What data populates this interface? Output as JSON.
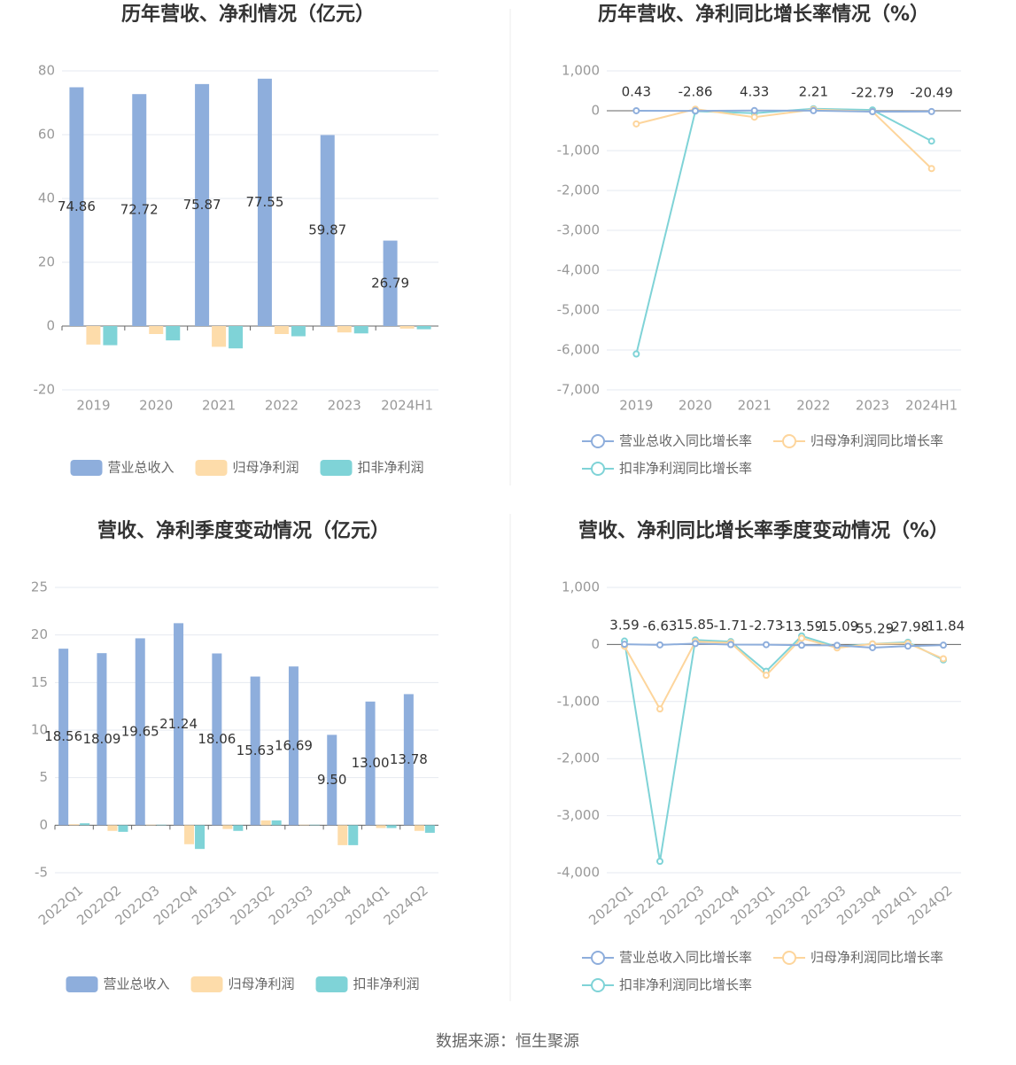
{
  "chart_data": [
    {
      "type": "bar",
      "title": "历年营收、净利情况（亿元）",
      "categories": [
        "2019",
        "2020",
        "2021",
        "2022",
        "2023",
        "2024H1"
      ],
      "series": [
        {
          "name": "营业总收入",
          "color": "#8eaedc",
          "show_labels": true,
          "values": [
            74.86,
            72.72,
            75.87,
            77.55,
            59.87,
            26.79
          ]
        },
        {
          "name": "归母净利润",
          "color": "#fddcaa",
          "values": [
            -5.8,
            -2.5,
            -6.5,
            -2.5,
            -2.0,
            -0.8
          ]
        },
        {
          "name": "扣非净利润",
          "color": "#7fd3d7",
          "values": [
            -6.0,
            -4.5,
            -7.0,
            -3.2,
            -2.3,
            -1.0
          ]
        }
      ],
      "ylim": [
        -20,
        80
      ],
      "yticks": [
        -20,
        0,
        20,
        40,
        60,
        80
      ],
      "grid": true,
      "legend": "bottom"
    },
    {
      "type": "line",
      "title": "历年营收、净利同比增长率情况（%）",
      "categories": [
        "2019",
        "2020",
        "2021",
        "2022",
        "2023",
        "2024H1"
      ],
      "series": [
        {
          "name": "营业总收入同比增长率",
          "color": "#8eaedc",
          "show_labels": true,
          "values": [
            0.43,
            -2.86,
            4.33,
            2.21,
            -22.79,
            -20.49
          ]
        },
        {
          "name": "归母净利润同比增长率",
          "color": "#fdd59c",
          "values": [
            -330,
            40,
            -160,
            30,
            -20,
            -1450
          ]
        },
        {
          "name": "扣非净利润同比增长率",
          "color": "#7fd3d7",
          "values": [
            -6100,
            -10,
            -60,
            50,
            20,
            -760
          ]
        }
      ],
      "ylim": [
        -7000,
        1000
      ],
      "yticks": [
        {
          "value": -7000,
          "label": "-7,000"
        },
        {
          "value": -6000,
          "label": "-6,000"
        },
        {
          "value": -5000,
          "label": "-5,000"
        },
        {
          "value": -4000,
          "label": "-4,000"
        },
        {
          "value": -3000,
          "label": "-3,000"
        },
        {
          "value": -2000,
          "label": "-2,000"
        },
        {
          "value": -1000,
          "label": "-1,000"
        },
        0,
        {
          "value": 1000,
          "label": "1,000"
        }
      ],
      "grid": true,
      "legend": "bottom"
    },
    {
      "type": "bar",
      "title": "营收、净利季度变动情况（亿元）",
      "categories": [
        "2022Q1",
        "2022Q2",
        "2022Q3",
        "2022Q4",
        "2023Q1",
        "2023Q2",
        "2023Q3",
        "2023Q4",
        "2024Q1",
        "2024Q2"
      ],
      "series": [
        {
          "name": "营业总收入",
          "color": "#8eaedc",
          "show_labels": true,
          "values": [
            18.56,
            18.09,
            19.65,
            21.24,
            18.06,
            15.63,
            16.69,
            9.5,
            13.0,
            13.78
          ],
          "value_labels": [
            "18.56",
            "18.09",
            "19.65",
            "21.24",
            "18.06",
            "15.63",
            "16.69",
            "9.50",
            "13.00",
            "13.78"
          ]
        },
        {
          "name": "归母净利润",
          "color": "#fddcaa",
          "values": [
            0.1,
            -0.6,
            0.05,
            -2.0,
            -0.4,
            0.5,
            0.05,
            -2.1,
            -0.3,
            -0.6
          ]
        },
        {
          "name": "扣非净利润",
          "color": "#7fd3d7",
          "values": [
            0.2,
            -0.7,
            0.05,
            -2.5,
            -0.6,
            0.5,
            0.05,
            -2.1,
            -0.3,
            -0.8
          ]
        }
      ],
      "ylim": [
        -5,
        25
      ],
      "yticks": [
        -5,
        0,
        5,
        10,
        15,
        20,
        25
      ],
      "grid": true,
      "legend": "bottom"
    },
    {
      "type": "line",
      "title": "营收、净利同比增长率季度变动情况（%）",
      "categories": [
        "2022Q1",
        "2022Q2",
        "2022Q3",
        "2022Q4",
        "2023Q1",
        "2023Q2",
        "2023Q3",
        "2023Q4",
        "2024Q1",
        "2024Q2"
      ],
      "series": [
        {
          "name": "营业总收入同比增长率",
          "color": "#8eaedc",
          "show_labels": true,
          "values": [
            3.59,
            -6.63,
            15.85,
            -1.71,
            -2.73,
            -13.59,
            -15.09,
            -55.29,
            -27.98,
            -11.84
          ]
        },
        {
          "name": "归母净利润同比增长率",
          "color": "#fdd59c",
          "values": [
            -30,
            -1130,
            50,
            30,
            -540,
            110,
            -60,
            10,
            20,
            -250
          ]
        },
        {
          "name": "扣非净利润同比增长率",
          "color": "#7fd3d7",
          "values": [
            60,
            -3800,
            80,
            50,
            -470,
            150,
            -40,
            10,
            40,
            -270
          ]
        }
      ],
      "ylim": [
        -4000,
        1000
      ],
      "yticks": [
        {
          "value": -4000,
          "label": "-4,000"
        },
        {
          "value": -3000,
          "label": "-3,000"
        },
        {
          "value": -2000,
          "label": "-2,000"
        },
        {
          "value": -1000,
          "label": "-1,000"
        },
        0,
        {
          "value": 1000,
          "label": "1,000"
        }
      ],
      "grid": true,
      "legend": "bottom"
    }
  ],
  "source": "数据来源：恒生聚源"
}
